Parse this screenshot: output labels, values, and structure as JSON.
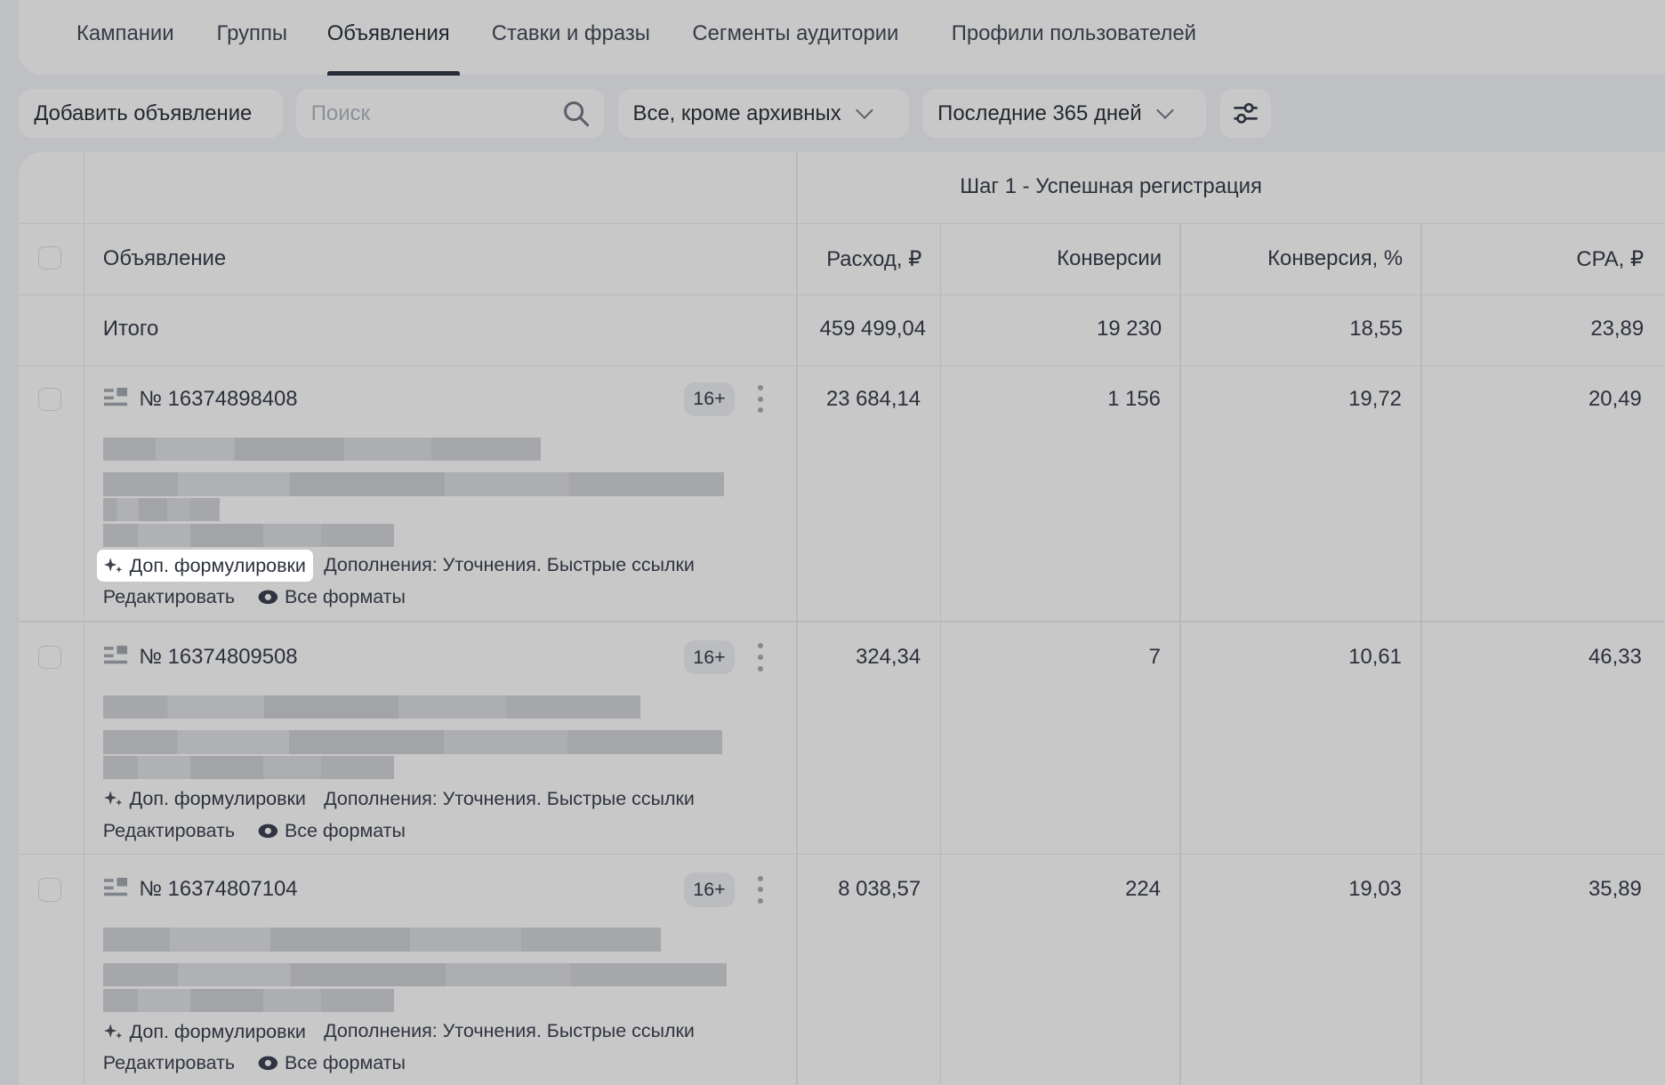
{
  "tabs": [
    {
      "label": "Кампании"
    },
    {
      "label": "Группы"
    },
    {
      "label": "Объявления",
      "active": true
    },
    {
      "label": "Ставки и фразы"
    },
    {
      "label": "Сегменты аудитории"
    },
    {
      "label": "Профили пользователей"
    }
  ],
  "toolbar": {
    "add_label": "Добавить объявление",
    "search_placeholder": "Поиск",
    "status_filter": "Все, кроме архивных",
    "period_filter": "Последние 365 дней"
  },
  "table": {
    "group_header": "Шаг 1 - Успешная регистрация",
    "columns": [
      "Объявление",
      "Расход, ₽",
      "Конверсии",
      "Конверсия, %",
      "CPA, ₽"
    ],
    "total": {
      "label": "Итого",
      "spend": "459 499,04",
      "conversions": "19 230",
      "conv_rate": "18,55",
      "cpa": "23,89"
    },
    "rows": [
      {
        "id": "№ 16374898408",
        "age": "16+",
        "spend": "23 684,14",
        "conversions": "1 156",
        "conv_rate": "19,72",
        "cpa": "20,49",
        "alt_label": "Доп. формулировки",
        "extras": "Дополнения: Уточнения. Быстрые ссылки",
        "edit": "Редактировать",
        "formats": "Все форматы"
      },
      {
        "id": "№ 16374809508",
        "age": "16+",
        "spend": "324,34",
        "conversions": "7",
        "conv_rate": "10,61",
        "cpa": "46,33",
        "alt_label": "Доп. формулировки",
        "extras": "Дополнения: Уточнения. Быстрые ссылки",
        "edit": "Редактировать",
        "formats": "Все форматы"
      },
      {
        "id": "№ 16374807104",
        "age": "16+",
        "spend": "8 038,57",
        "conversions": "224",
        "conv_rate": "19,03",
        "cpa": "35,89",
        "alt_label": "Доп. формулировки",
        "extras": "Дополнения: Уточнения. Быстрые ссылки",
        "edit": "Редактировать",
        "formats": "Все форматы"
      }
    ]
  }
}
